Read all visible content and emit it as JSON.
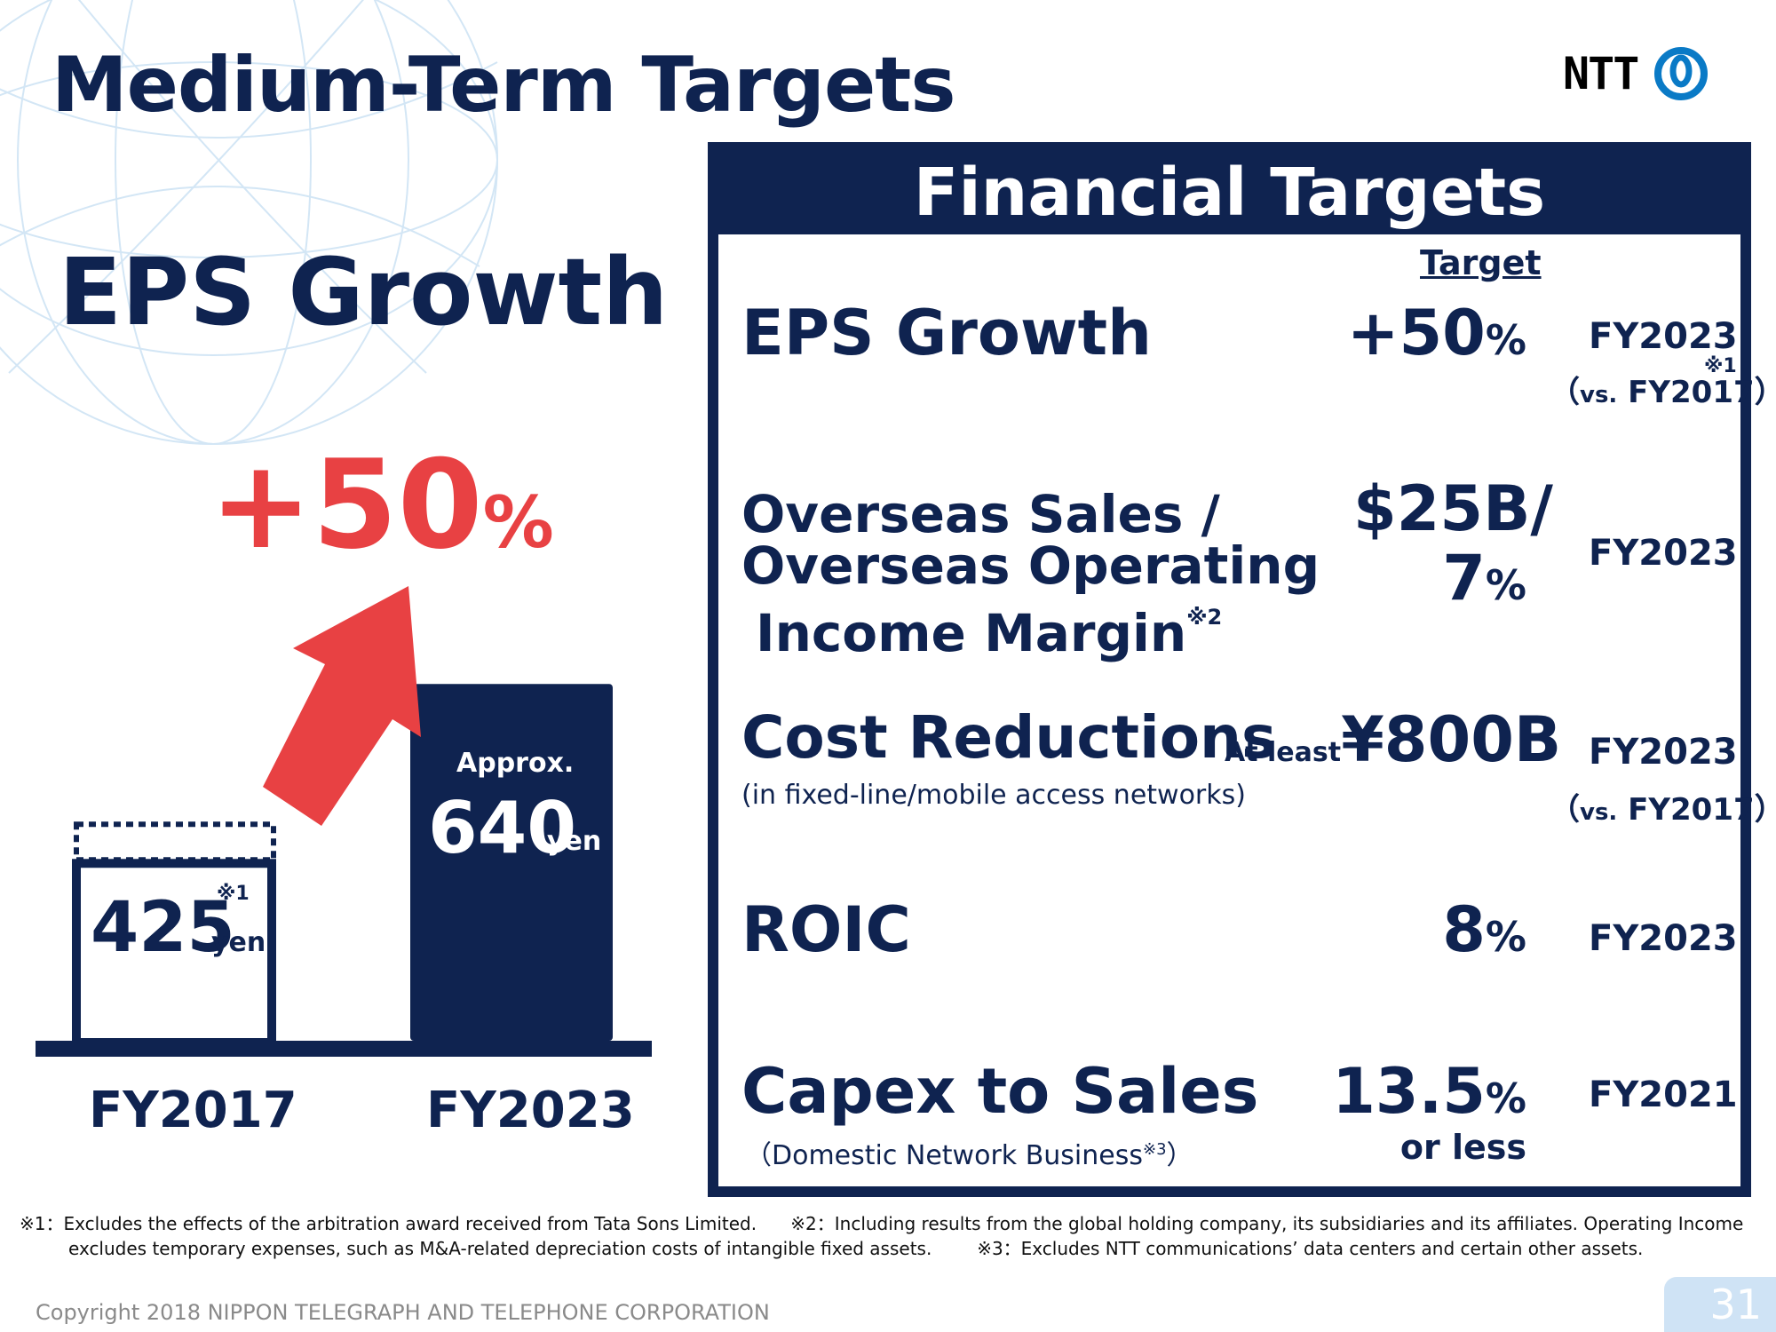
{
  "title": "Medium-Term Targets",
  "logo": {
    "text": "NTT",
    "icon": "ntt-circle-logo-icon",
    "color": "#0a7ac6"
  },
  "eps_section": {
    "heading": "EPS Growth",
    "growth": {
      "number": "+50",
      "unit": "%",
      "color": "#e84143"
    }
  },
  "chart_data": {
    "type": "bar",
    "categories": [
      "FY2017",
      "FY2023"
    ],
    "values": [
      425,
      640
    ],
    "unit": "yen",
    "value_labels": [
      "425",
      "640"
    ],
    "prefix_labels": [
      "",
      "Approx."
    ],
    "notes": [
      "※1",
      ""
    ],
    "colors": {
      "bar1_fill": "#ffffff",
      "bar1_border": "#0f2350",
      "bar2_fill": "#0f2350",
      "arrow": "#e84143"
    }
  },
  "financial_targets": {
    "title": "Financial Targets",
    "header": "Target",
    "rows": [
      {
        "label": "EPS Growth",
        "value": "+50",
        "unit": "%",
        "year": "FY2023",
        "note": "※1",
        "vs_open": "（",
        "vs_small": "vs.",
        "vs_year": "FY2017",
        "vs_close": "）"
      },
      {
        "label_lines": [
          "Overseas Sales /",
          "Overseas Operating",
          "Income Margin"
        ],
        "label_note": "※2",
        "value_line1": "$25B/",
        "value_line2": "7",
        "unit": "%",
        "year": "FY2023"
      },
      {
        "label": "Cost Reductions",
        "sublabel": "(in fixed-line/mobile access networks)",
        "value_prefix": "At least",
        "value": "¥800B",
        "year": "FY2023",
        "vs_open": "（",
        "vs_small": "vs.",
        "vs_year": "FY2017",
        "vs_close": "）"
      },
      {
        "label": "ROIC",
        "value": "8",
        "unit": "%",
        "year": "FY2023"
      },
      {
        "label": "Capex to Sales",
        "sublabel": "（Domestic Network Business",
        "sublabel_note": "※3",
        "sublabel_close": "）",
        "value": "13.5",
        "unit": "%",
        "value_suffix": "or less",
        "year": "FY2021"
      }
    ]
  },
  "footnotes": {
    "line1_a": "※1：Excludes the effects of the arbitration award received from Tata Sons Limited.",
    "line1_b": "※2：Including results from the global holding company, its subsidiaries and its affiliates. Operating Income",
    "line2_a": "excludes temporary expenses, such as M&A-related depreciation costs of intangible fixed assets.",
    "line2_b": "※3：Excludes NTT communications’ data centers and certain other assets."
  },
  "copyright": "Copyright 2018 NIPPON TELEGRAPH AND TELEPHONE CORPORATION",
  "page_number": "31"
}
